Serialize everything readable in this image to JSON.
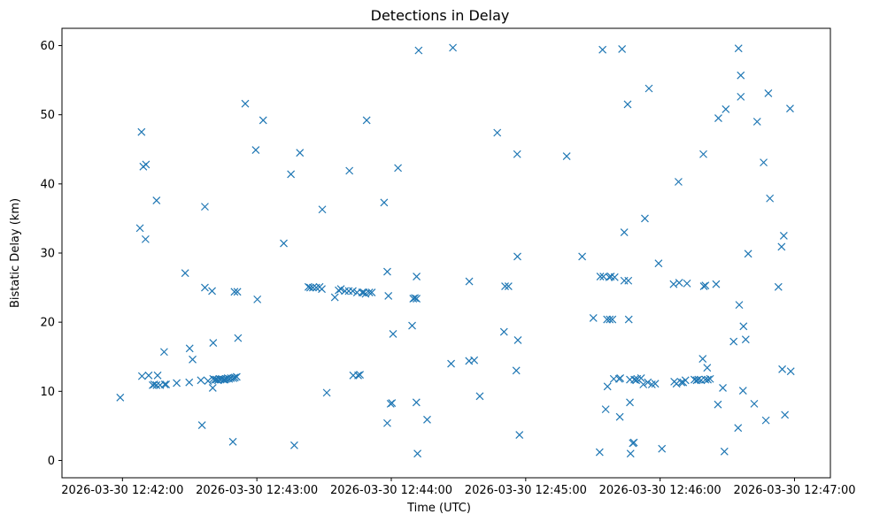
{
  "chart_data": {
    "type": "scatter",
    "title": "Detections in Delay",
    "xlabel": "Time (UTC)",
    "ylabel": "Bistatic Delay (km)",
    "xlim_seconds": [
      -27,
      316
    ],
    "ylim": [
      -2.5,
      62.5
    ],
    "x_origin": "2026-03-30 12:42:00",
    "x_tick_seconds": [
      0,
      60,
      120,
      180,
      240,
      300
    ],
    "x_tick_labels": [
      "2026-03-30 12:42:00",
      "2026-03-30 12:43:00",
      "2026-03-30 12:44:00",
      "2026-03-30 12:45:00",
      "2026-03-30 12:46:00",
      "2026-03-30 12:47:00"
    ],
    "y_ticks": [
      0,
      10,
      20,
      30,
      40,
      50,
      60
    ],
    "y_tick_labels": [
      "0",
      "10",
      "20",
      "30",
      "40",
      "50",
      "60"
    ],
    "marker": "x",
    "color": "#1f77b4",
    "series": [
      {
        "name": "detections",
        "points": [
          [
            -1.0,
            9.1
          ],
          [
            7.8,
            33.6
          ],
          [
            8.5,
            47.5
          ],
          [
            8.7,
            12.2
          ],
          [
            9.3,
            42.5
          ],
          [
            10.5,
            42.8
          ],
          [
            10.3,
            32.0
          ],
          [
            11.7,
            12.3
          ],
          [
            13.5,
            10.9
          ],
          [
            14.2,
            11.0
          ],
          [
            15.2,
            37.6
          ],
          [
            15.2,
            10.9
          ],
          [
            15.7,
            12.3
          ],
          [
            16.8,
            10.9
          ],
          [
            18.6,
            15.7
          ],
          [
            18.9,
            11.0
          ],
          [
            19.5,
            11.0
          ],
          [
            24.2,
            11.2
          ],
          [
            28.0,
            27.1
          ],
          [
            30.0,
            16.2
          ],
          [
            29.8,
            11.3
          ],
          [
            31.3,
            14.6
          ],
          [
            35.0,
            11.6
          ],
          [
            35.5,
            5.1
          ],
          [
            36.8,
            36.7
          ],
          [
            36.8,
            25.0
          ],
          [
            38.2,
            11.5
          ],
          [
            40.0,
            24.5
          ],
          [
            40.5,
            11.8
          ],
          [
            40.5,
            17.0
          ],
          [
            40.3,
            10.5
          ],
          [
            41.3,
            11.7
          ],
          [
            42.0,
            11.7
          ],
          [
            42.7,
            11.6
          ],
          [
            43.2,
            11.8
          ],
          [
            43.8,
            11.7
          ],
          [
            44.3,
            11.8
          ],
          [
            45.2,
            11.7
          ],
          [
            45.7,
            11.7
          ],
          [
            46.3,
            11.8
          ],
          [
            47.0,
            11.9
          ],
          [
            47.6,
            11.8
          ],
          [
            48.4,
            11.9
          ],
          [
            49.3,
            2.7
          ],
          [
            49.5,
            11.9
          ],
          [
            50.0,
            24.4
          ],
          [
            50.2,
            12.0
          ],
          [
            51.0,
            12.1
          ],
          [
            51.3,
            24.4
          ],
          [
            51.6,
            17.7
          ],
          [
            54.8,
            51.6
          ],
          [
            59.5,
            44.9
          ],
          [
            60.2,
            23.3
          ],
          [
            62.8,
            49.2
          ],
          [
            72.0,
            31.4
          ],
          [
            75.2,
            41.4
          ],
          [
            76.7,
            2.2
          ],
          [
            79.2,
            44.5
          ],
          [
            83.0,
            25.1
          ],
          [
            83.8,
            25.0
          ],
          [
            85.0,
            25.0
          ],
          [
            86.5,
            25.0
          ],
          [
            88.0,
            25.1
          ],
          [
            89.0,
            24.8
          ],
          [
            89.2,
            36.3
          ],
          [
            91.2,
            9.8
          ],
          [
            94.8,
            23.6
          ],
          [
            96.5,
            24.6
          ],
          [
            97.5,
            24.8
          ],
          [
            99.3,
            24.5
          ],
          [
            101.0,
            24.5
          ],
          [
            101.3,
            41.9
          ],
          [
            102.8,
            24.5
          ],
          [
            103.0,
            12.3
          ],
          [
            104.7,
            24.3
          ],
          [
            105.2,
            12.3
          ],
          [
            106.0,
            12.4
          ],
          [
            107.0,
            24.3
          ],
          [
            107.7,
            24.3
          ],
          [
            108.5,
            24.1
          ],
          [
            109.0,
            49.2
          ],
          [
            110.2,
            24.3
          ],
          [
            111.3,
            24.3
          ],
          [
            116.8,
            37.3
          ],
          [
            118.2,
            5.4
          ],
          [
            118.2,
            27.3
          ],
          [
            118.7,
            23.8
          ],
          [
            119.7,
            8.2
          ],
          [
            120.3,
            8.3
          ],
          [
            120.8,
            18.3
          ],
          [
            123.0,
            42.3
          ],
          [
            129.3,
            19.5
          ],
          [
            129.8,
            23.4
          ],
          [
            130.5,
            23.5
          ],
          [
            131.3,
            23.4
          ],
          [
            131.3,
            26.6
          ],
          [
            131.2,
            8.4
          ],
          [
            132.2,
            59.3
          ],
          [
            131.7,
            1.0
          ],
          [
            136.0,
            5.9
          ],
          [
            146.7,
            14.0
          ],
          [
            147.5,
            59.7
          ],
          [
            154.8,
            25.9
          ],
          [
            154.7,
            14.4
          ],
          [
            157.0,
            14.5
          ],
          [
            159.5,
            9.3
          ],
          [
            167.3,
            47.4
          ],
          [
            170.3,
            18.6
          ],
          [
            170.8,
            25.2
          ],
          [
            172.3,
            25.2
          ],
          [
            175.8,
            13.0
          ],
          [
            176.3,
            29.5
          ],
          [
            176.2,
            44.3
          ],
          [
            176.5,
            17.4
          ],
          [
            177.2,
            3.7
          ],
          [
            198.3,
            44.0
          ],
          [
            205.2,
            29.5
          ],
          [
            210.2,
            20.6
          ],
          [
            213.0,
            1.2
          ],
          [
            213.3,
            26.6
          ],
          [
            214.3,
            59.4
          ],
          [
            214.7,
            26.6
          ],
          [
            215.7,
            7.4
          ],
          [
            216.3,
            20.4
          ],
          [
            216.5,
            10.7
          ],
          [
            217.5,
            20.4
          ],
          [
            217.3,
            26.5
          ],
          [
            218.0,
            26.6
          ],
          [
            218.7,
            20.4
          ],
          [
            219.3,
            11.8
          ],
          [
            219.7,
            26.5
          ],
          [
            221.7,
            11.8
          ],
          [
            222.0,
            6.3
          ],
          [
            222.2,
            11.9
          ],
          [
            223.0,
            59.5
          ],
          [
            224.0,
            33.0
          ],
          [
            224.0,
            26.0
          ],
          [
            225.5,
            51.5
          ],
          [
            225.8,
            26.0
          ],
          [
            226.0,
            20.4
          ],
          [
            226.5,
            11.7
          ],
          [
            226.5,
            8.4
          ],
          [
            226.8,
            1.0
          ],
          [
            227.8,
            2.5
          ],
          [
            228.5,
            11.7
          ],
          [
            228.3,
            2.6
          ],
          [
            229.3,
            11.6
          ],
          [
            229.8,
            11.8
          ],
          [
            231.5,
            11.9
          ],
          [
            232.5,
            11.0
          ],
          [
            233.2,
            35.0
          ],
          [
            234.5,
            11.3
          ],
          [
            235.0,
            53.8
          ],
          [
            236.3,
            11.0
          ],
          [
            237.8,
            11.1
          ],
          [
            239.3,
            28.5
          ],
          [
            240.8,
            1.7
          ],
          [
            246.0,
            25.5
          ],
          [
            246.3,
            11.4
          ],
          [
            247.3,
            11.1
          ],
          [
            248.2,
            40.3
          ],
          [
            248.5,
            25.7
          ],
          [
            249.5,
            11.3
          ],
          [
            250.3,
            11.3
          ],
          [
            251.3,
            11.6
          ],
          [
            252.0,
            25.6
          ],
          [
            255.3,
            11.7
          ],
          [
            256.3,
            11.6
          ],
          [
            257.0,
            11.7
          ],
          [
            258.3,
            11.6
          ],
          [
            259.0,
            14.7
          ],
          [
            259.3,
            44.3
          ],
          [
            259.5,
            25.2
          ],
          [
            260.2,
            11.7
          ],
          [
            260.2,
            25.3
          ],
          [
            261.0,
            13.4
          ],
          [
            261.3,
            11.7
          ],
          [
            262.3,
            11.8
          ],
          [
            265.0,
            25.5
          ],
          [
            265.8,
            8.1
          ],
          [
            266.0,
            49.5
          ],
          [
            268.0,
            10.5
          ],
          [
            268.7,
            1.3
          ],
          [
            269.3,
            50.8
          ],
          [
            272.8,
            17.2
          ],
          [
            274.8,
            4.7
          ],
          [
            275.0,
            59.6
          ],
          [
            275.3,
            22.5
          ],
          [
            276.0,
            52.6
          ],
          [
            276.0,
            55.7
          ],
          [
            277.0,
            10.1
          ],
          [
            277.2,
            19.4
          ],
          [
            278.2,
            17.5
          ],
          [
            279.3,
            29.9
          ],
          [
            282.0,
            8.2
          ],
          [
            283.3,
            49.0
          ],
          [
            286.2,
            43.1
          ],
          [
            287.2,
            5.8
          ],
          [
            288.3,
            53.1
          ],
          [
            289.0,
            37.9
          ],
          [
            292.8,
            25.1
          ],
          [
            294.2,
            30.9
          ],
          [
            294.5,
            13.2
          ],
          [
            295.2,
            32.5
          ],
          [
            295.7,
            6.6
          ],
          [
            298.0,
            50.9
          ],
          [
            298.3,
            12.9
          ]
        ]
      }
    ]
  }
}
